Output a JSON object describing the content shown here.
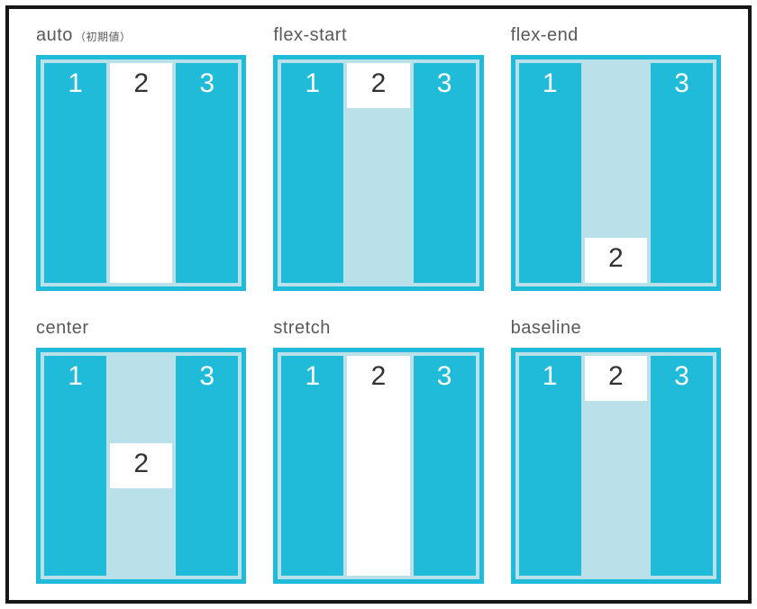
{
  "colors": {
    "highlight": "#1fbbd9",
    "inner_bg": "#bae0ea",
    "sig_bg": "#ffffff",
    "border_width": 5
  },
  "items": {
    "one": "1",
    "two": "2",
    "three": "3"
  },
  "panels": [
    {
      "label": "auto",
      "sub": "（初期値）",
      "align_self": "stretch"
    },
    {
      "label": "flex-start",
      "sub": "",
      "align_self": "flex-start"
    },
    {
      "label": "flex-end",
      "sub": "",
      "align_self": "flex-end"
    },
    {
      "label": "center",
      "sub": "",
      "align_self": "center"
    },
    {
      "label": "stretch",
      "sub": "",
      "align_self": "stretch"
    },
    {
      "label": "baseline",
      "sub": "",
      "align_self": "baseline"
    }
  ],
  "sig_small_height": 50
}
